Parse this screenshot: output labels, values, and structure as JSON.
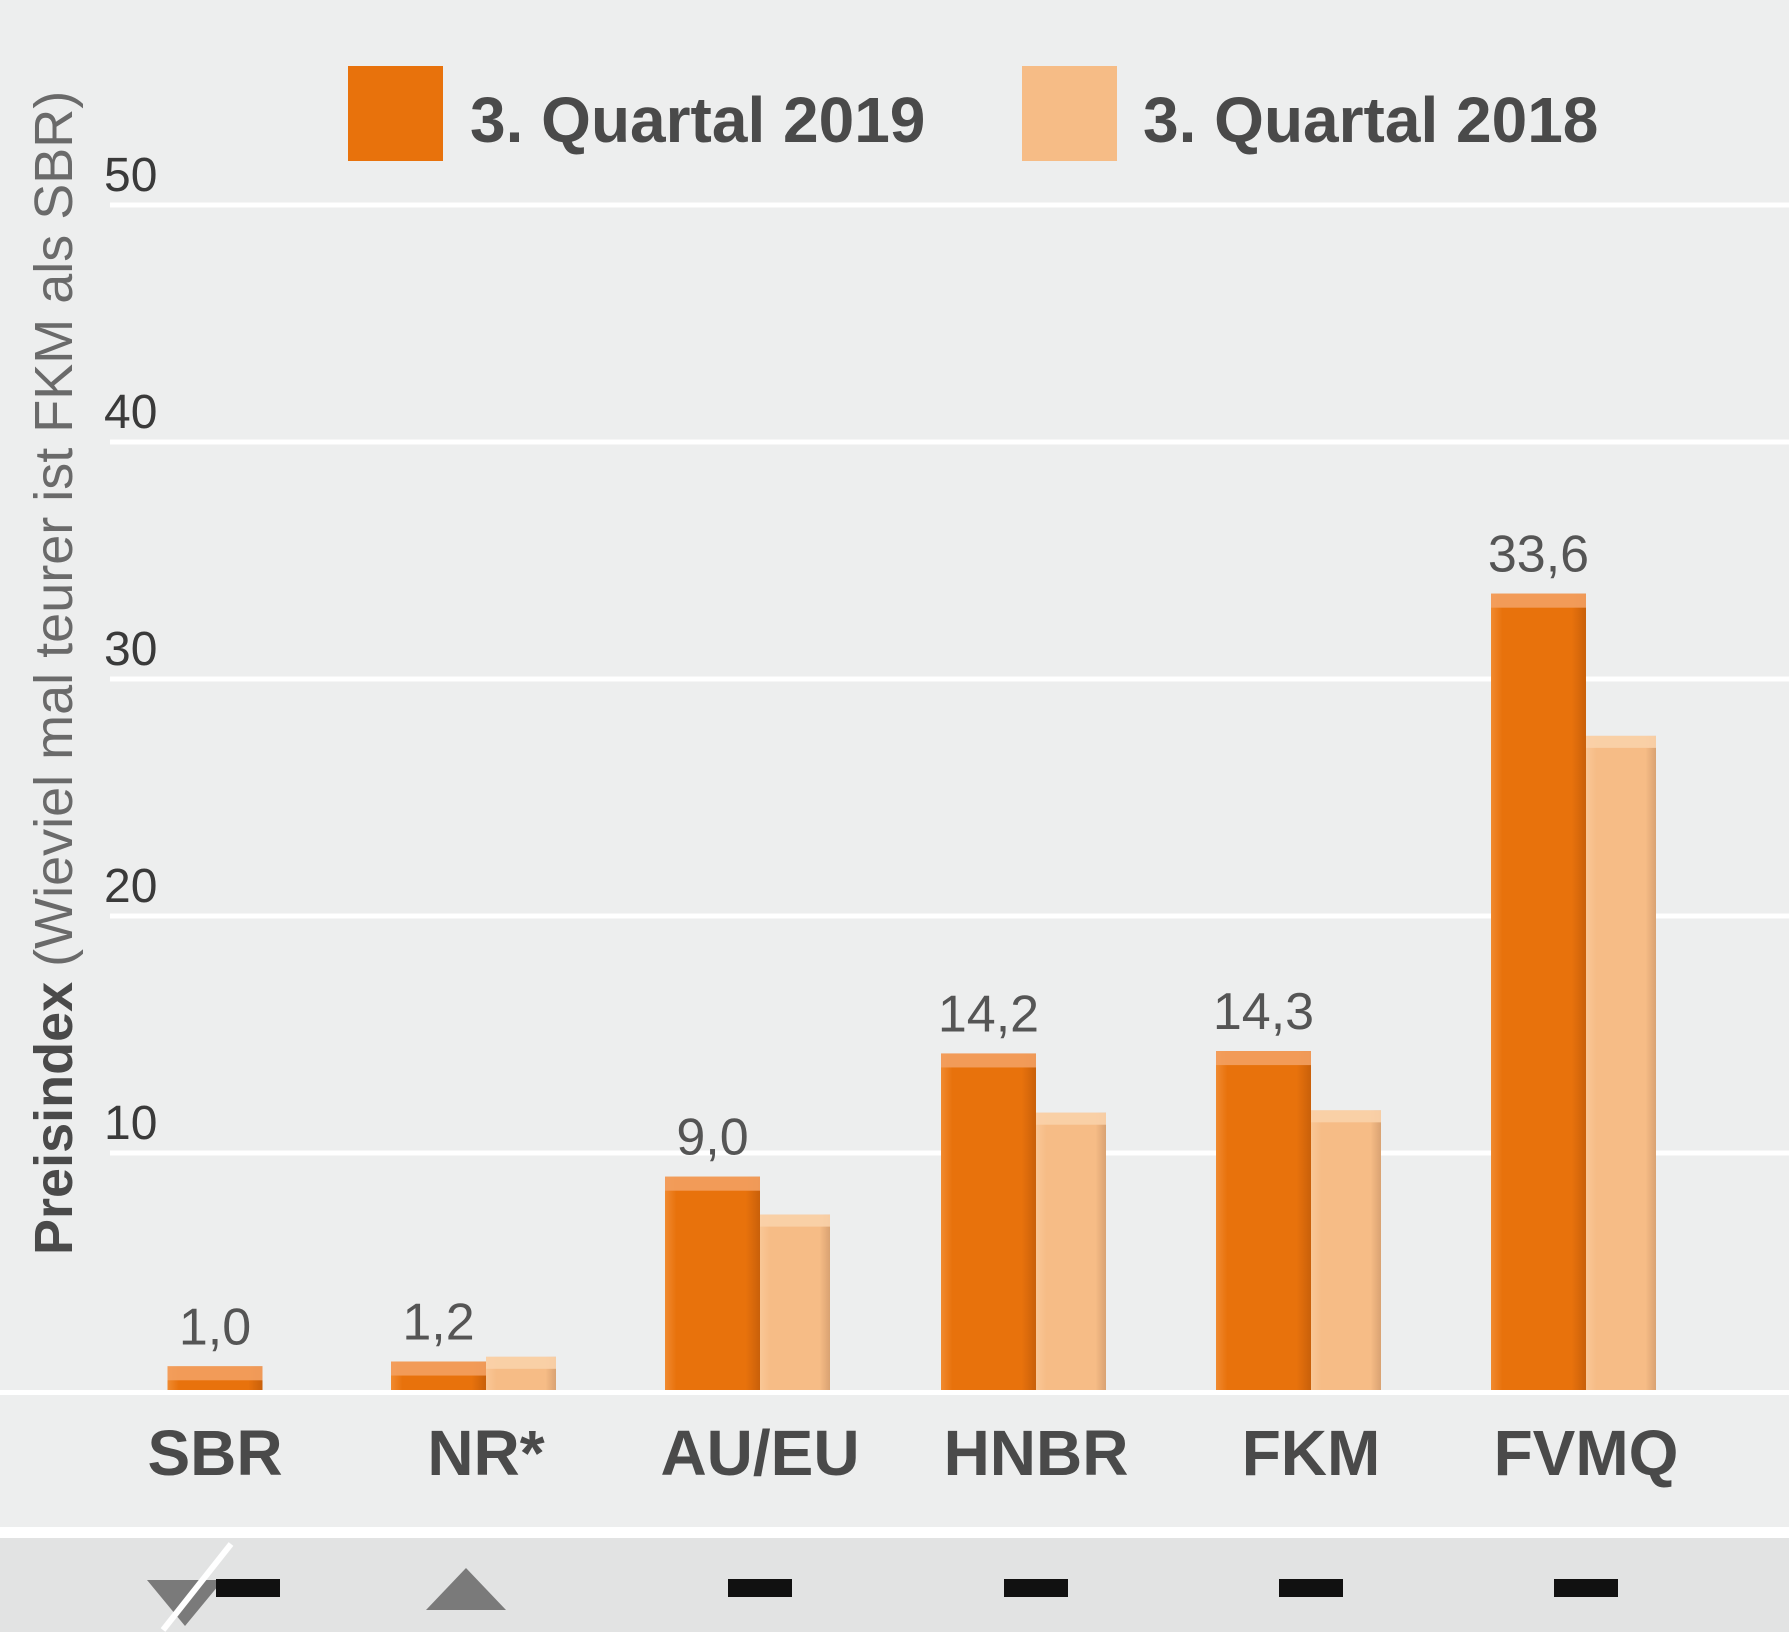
{
  "chart_data": {
    "type": "bar",
    "categories": [
      "SBR",
      "NR*",
      "AU/EU",
      "HNBR",
      "FKM",
      "FVMQ"
    ],
    "series": [
      {
        "name": "3. Quartal 2019",
        "values": [
          1.0,
          1.2,
          9.0,
          14.2,
          14.3,
          33.6
        ],
        "color": "#E8720C"
      },
      {
        "name": "3. Quartal 2018",
        "values": [
          null,
          1.4,
          7.4,
          11.7,
          11.8,
          27.6
        ],
        "color": "#F6BC86"
      }
    ],
    "data_labels": [
      "1,0",
      "1,2",
      "9,0",
      "14,2",
      "14,3",
      "33,6"
    ],
    "ylabel_bold": "Preisindex",
    "ylabel_rest": " (Wieviel mal teurer ist FKM als SBR)",
    "yticks": [
      10,
      20,
      30,
      40,
      50
    ],
    "ylim": [
      0,
      50
    ],
    "grid": true,
    "legend_position": "top",
    "trend_indicators": [
      "down-and-neutral",
      "up",
      "neutral",
      "neutral",
      "neutral",
      "neutral"
    ],
    "colors": {
      "background": "#EDEEEE",
      "grid": "#FFFFFF",
      "indicator_triangle": "#7A7A7A",
      "indicator_dash": "#111111"
    }
  }
}
